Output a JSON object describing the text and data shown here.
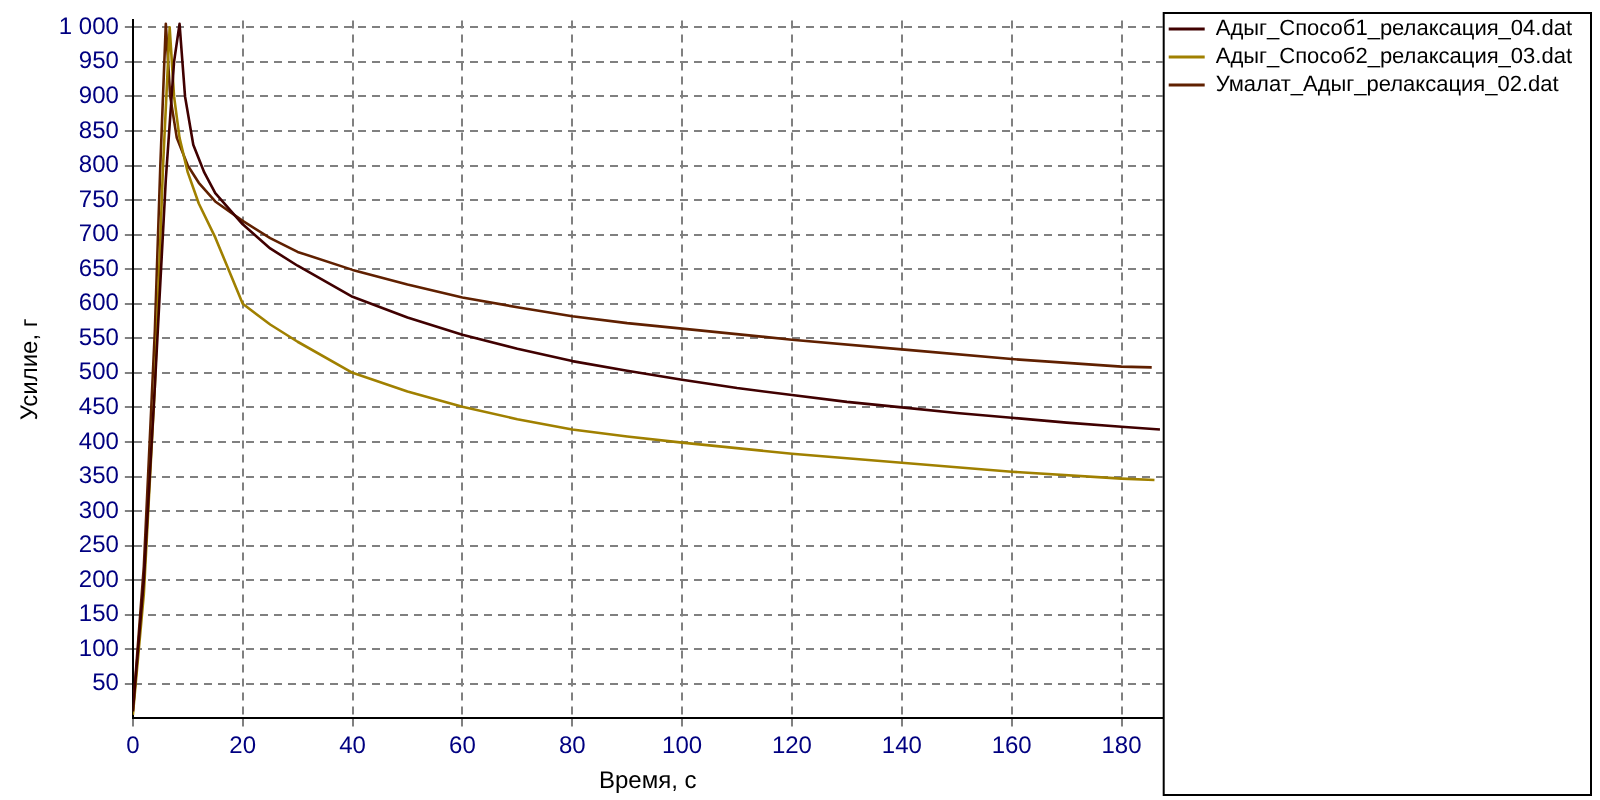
{
  "chart_data": {
    "type": "line",
    "xlabel": "Время, с",
    "ylabel": "Усилие, г",
    "xlim": [
      0,
      187.5
    ],
    "ylim": [
      0,
      1010
    ],
    "xticks": [
      0,
      20,
      40,
      60,
      80,
      100,
      120,
      140,
      160,
      180
    ],
    "yticks": [
      50,
      100,
      150,
      200,
      250,
      300,
      350,
      400,
      450,
      500,
      550,
      600,
      650,
      700,
      750,
      800,
      850,
      900,
      950,
      {
        "value": 1000,
        "label": "1 000"
      }
    ],
    "grid": true,
    "legend": "top right",
    "marker": "none",
    "line_style": "solid",
    "series": [
      {
        "name": "Адыг_Способ1_релаксация_04.dat",
        "color": "#400000",
        "x": [
          0,
          2,
          4,
          6,
          7.5,
          8.5,
          9.5,
          11,
          13,
          15,
          20,
          25,
          30,
          40,
          50,
          60,
          70,
          80,
          90,
          100,
          110,
          120,
          130,
          140,
          150,
          160,
          170,
          180,
          187
        ],
        "values": [
          10,
          200,
          480,
          780,
          950,
          1005,
          900,
          830,
          790,
          760,
          715,
          680,
          655,
          610,
          580,
          555,
          535,
          517,
          503,
          490,
          478,
          468,
          458,
          450,
          442,
          435,
          428,
          422,
          418
        ]
      },
      {
        "name": "Адыг_Способ2_релаксация_03.dat",
        "color": "#a08000",
        "x": [
          0,
          2,
          4,
          5.5,
          6.7,
          7.5,
          8.5,
          10,
          12,
          15,
          20,
          25,
          30,
          40,
          50,
          60,
          70,
          80,
          90,
          100,
          120,
          140,
          160,
          180,
          186
        ],
        "values": [
          5,
          180,
          480,
          800,
          1000,
          900,
          840,
          790,
          745,
          696,
          600,
          570,
          545,
          500,
          473,
          451,
          433,
          418,
          408,
          399,
          383,
          370,
          357,
          347,
          345
        ]
      },
      {
        "name": "Умалат_Адыг_релаксация_02.dat",
        "color": "#602000",
        "x": [
          0,
          2,
          4,
          5,
          6,
          6.8,
          8,
          10,
          12,
          15,
          20,
          25,
          30,
          40,
          50,
          60,
          70,
          80,
          90,
          100,
          120,
          140,
          160,
          180,
          185.5
        ],
        "values": [
          10,
          220,
          560,
          800,
          1005,
          900,
          840,
          800,
          775,
          748,
          720,
          695,
          675,
          649,
          628,
          609,
          595,
          582,
          572,
          564,
          548,
          534,
          520,
          509,
          508
        ]
      }
    ]
  }
}
